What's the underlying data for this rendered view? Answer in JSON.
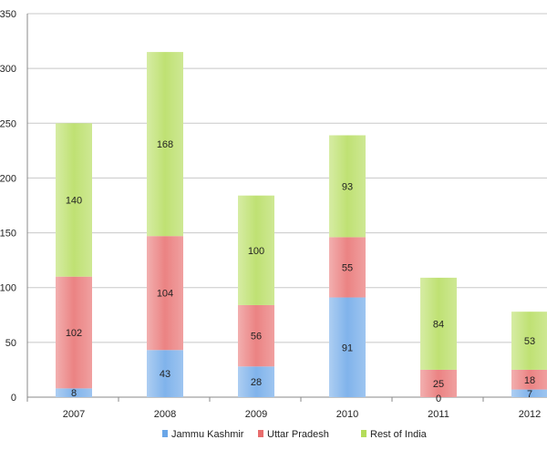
{
  "chart_data": {
    "type": "bar",
    "stacked": true,
    "categories": [
      "2007",
      "2008",
      "2009",
      "2010",
      "2011",
      "2012"
    ],
    "series": [
      {
        "name": "Jammu Kashmir",
        "color": "#6aa6e8",
        "values": [
          8,
          43,
          28,
          91,
          0,
          7
        ]
      },
      {
        "name": "Uttar Pradesh",
        "color": "#e86d6d",
        "values": [
          102,
          104,
          56,
          55,
          25,
          18
        ]
      },
      {
        "name": "Rest of India",
        "color": "#b4dc5a",
        "values": [
          140,
          168,
          100,
          93,
          84,
          53
        ]
      }
    ],
    "ylim": [
      0,
      350
    ],
    "yticks": [
      0,
      50,
      100,
      150,
      200,
      250,
      300,
      350
    ],
    "grid": true,
    "legend_position": "bottom",
    "title": "",
    "xlabel": "",
    "ylabel": ""
  }
}
